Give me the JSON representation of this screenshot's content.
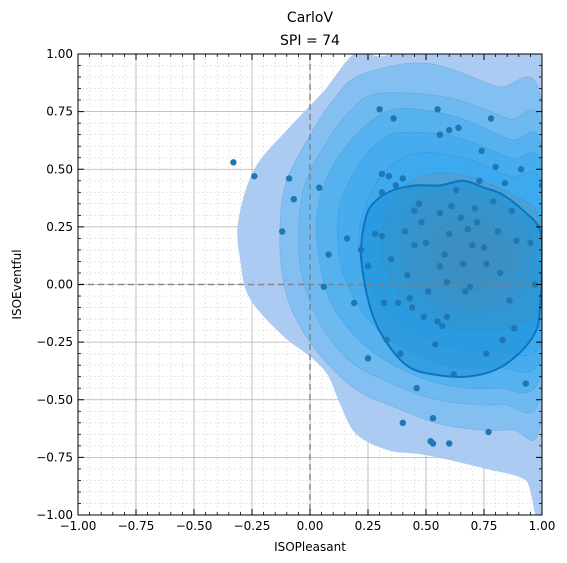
{
  "chart_data": {
    "type": "scatter",
    "title": "CarloV",
    "subtitle": "SPI = 74",
    "xlabel": "ISOPleasant",
    "ylabel": "ISOEventful",
    "xlim": [
      -1,
      1
    ],
    "ylim": [
      -1,
      1
    ],
    "grid": true,
    "minor_grid": true,
    "xticks": [
      "−1.00",
      "−0.75",
      "−0.50",
      "−0.25",
      "0.00",
      "0.25",
      "0.50",
      "0.75",
      "1.00"
    ],
    "yticks": [
      "−1.00",
      "−0.75",
      "−0.50",
      "−0.25",
      "0.00",
      "0.25",
      "0.50",
      "0.75",
      "1.00"
    ],
    "reference_lines": {
      "x": 0,
      "y": 0
    },
    "colors": {
      "points": "#1f77b4",
      "density_outer": "#a7c8f2",
      "density_mid": "#55b1f0",
      "density_inner": "#2aa4ee",
      "density_core": "#6f8797",
      "hdr_fill": "#1b8fd6",
      "hdr_edge": "#0d74c2",
      "reference": "#808080"
    },
    "density_levels": [
      {
        "points": [
          [
            0.19,
            1.0
          ],
          [
            0.3,
            0.99
          ],
          [
            0.42,
            1.0
          ],
          [
            1.0,
            1.0
          ],
          [
            1.0,
            -0.97
          ],
          [
            0.93,
            -0.85
          ],
          [
            0.76,
            -0.8
          ],
          [
            0.5,
            -0.74
          ],
          [
            0.34,
            -0.72
          ],
          [
            0.2,
            -0.65
          ],
          [
            0.13,
            -0.52
          ],
          [
            0.08,
            -0.4
          ],
          [
            0.01,
            -0.32
          ],
          [
            -0.12,
            -0.22
          ],
          [
            -0.26,
            -0.06
          ],
          [
            -0.3,
            0.1
          ],
          [
            -0.31,
            0.27
          ],
          [
            -0.24,
            0.5
          ],
          [
            -0.09,
            0.68
          ],
          [
            0.06,
            0.84
          ]
        ]
      },
      {
        "points": [
          [
            0.22,
            0.91
          ],
          [
            0.5,
            0.96
          ],
          [
            0.8,
            0.86
          ],
          [
            1.0,
            0.78
          ],
          [
            1.0,
            -0.55
          ],
          [
            0.86,
            -0.63
          ],
          [
            0.58,
            -0.61
          ],
          [
            0.36,
            -0.53
          ],
          [
            0.22,
            -0.47
          ],
          [
            0.1,
            -0.37
          ],
          [
            -0.02,
            -0.22
          ],
          [
            -0.1,
            -0.05
          ],
          [
            -0.13,
            0.17
          ],
          [
            -0.11,
            0.42
          ],
          [
            -0.01,
            0.63
          ],
          [
            0.1,
            0.8
          ]
        ]
      },
      {
        "points": [
          [
            0.3,
            0.83
          ],
          [
            0.6,
            0.81
          ],
          [
            0.85,
            0.72
          ],
          [
            1.0,
            0.66
          ],
          [
            1.0,
            -0.45
          ],
          [
            0.82,
            -0.52
          ],
          [
            0.55,
            -0.5
          ],
          [
            0.33,
            -0.42
          ],
          [
            0.17,
            -0.33
          ],
          [
            0.05,
            -0.18
          ],
          [
            -0.03,
            0.02
          ],
          [
            -0.05,
            0.22
          ],
          [
            -0.02,
            0.44
          ],
          [
            0.08,
            0.63
          ],
          [
            0.18,
            0.76
          ]
        ]
      },
      {
        "points": [
          [
            0.36,
            0.76
          ],
          [
            0.62,
            0.73
          ],
          [
            0.86,
            0.63
          ],
          [
            1.0,
            0.58
          ],
          [
            1.0,
            -0.37
          ],
          [
            0.8,
            -0.45
          ],
          [
            0.56,
            -0.43
          ],
          [
            0.36,
            -0.35
          ],
          [
            0.2,
            -0.23
          ],
          [
            0.09,
            -0.08
          ],
          [
            0.04,
            0.1
          ],
          [
            0.03,
            0.31
          ],
          [
            0.09,
            0.5
          ],
          [
            0.2,
            0.65
          ]
        ]
      },
      {
        "points": [
          [
            0.4,
            0.66
          ],
          [
            0.63,
            0.64
          ],
          [
            0.86,
            0.55
          ],
          [
            1.0,
            0.5
          ],
          [
            1.0,
            -0.3
          ],
          [
            0.8,
            -0.36
          ],
          [
            0.58,
            -0.35
          ],
          [
            0.39,
            -0.27
          ],
          [
            0.25,
            -0.15
          ],
          [
            0.16,
            0.0
          ],
          [
            0.12,
            0.17
          ],
          [
            0.13,
            0.35
          ],
          [
            0.21,
            0.52
          ],
          [
            0.3,
            0.62
          ]
        ]
      },
      {
        "points": [
          [
            0.46,
            0.57
          ],
          [
            0.66,
            0.55
          ],
          [
            0.86,
            0.47
          ],
          [
            1.0,
            0.43
          ],
          [
            1.0,
            -0.24
          ],
          [
            0.8,
            -0.29
          ],
          [
            0.6,
            -0.27
          ],
          [
            0.43,
            -0.2
          ],
          [
            0.3,
            -0.08
          ],
          [
            0.23,
            0.06
          ],
          [
            0.21,
            0.21
          ],
          [
            0.25,
            0.37
          ],
          [
            0.33,
            0.5
          ]
        ]
      },
      {
        "points": [
          [
            0.52,
            0.48
          ],
          [
            0.68,
            0.47
          ],
          [
            0.85,
            0.4
          ],
          [
            0.98,
            0.31
          ],
          [
            1.0,
            0.1
          ],
          [
            0.98,
            -0.12
          ],
          [
            0.8,
            -0.2
          ],
          [
            0.62,
            -0.19
          ],
          [
            0.47,
            -0.12
          ],
          [
            0.36,
            -0.01
          ],
          [
            0.31,
            0.13
          ],
          [
            0.32,
            0.28
          ],
          [
            0.4,
            0.42
          ]
        ]
      },
      {
        "points": [
          [
            0.56,
            0.41
          ],
          [
            0.7,
            0.4
          ],
          [
            0.84,
            0.34
          ],
          [
            0.94,
            0.24
          ],
          [
            0.95,
            0.08
          ],
          [
            0.9,
            -0.06
          ],
          [
            0.77,
            -0.12
          ],
          [
            0.62,
            -0.12
          ],
          [
            0.5,
            -0.06
          ],
          [
            0.42,
            0.04
          ],
          [
            0.39,
            0.16
          ],
          [
            0.41,
            0.28
          ],
          [
            0.47,
            0.37
          ]
        ]
      },
      {
        "points": [
          [
            0.6,
            0.35
          ],
          [
            0.72,
            0.34
          ],
          [
            0.83,
            0.29
          ],
          [
            0.9,
            0.2
          ],
          [
            0.9,
            0.08
          ],
          [
            0.85,
            -0.02
          ],
          [
            0.75,
            -0.07
          ],
          [
            0.63,
            -0.06
          ],
          [
            0.53,
            -0.01
          ],
          [
            0.47,
            0.08
          ],
          [
            0.46,
            0.18
          ],
          [
            0.49,
            0.28
          ],
          [
            0.54,
            0.33
          ]
        ]
      },
      {
        "points": [
          [
            0.63,
            0.28
          ],
          [
            0.73,
            0.28
          ],
          [
            0.81,
            0.24
          ],
          [
            0.85,
            0.16
          ],
          [
            0.84,
            0.07
          ],
          [
            0.79,
            0.01
          ],
          [
            0.71,
            -0.02
          ],
          [
            0.63,
            0.0
          ],
          [
            0.56,
            0.05
          ],
          [
            0.53,
            0.13
          ],
          [
            0.54,
            0.21
          ],
          [
            0.58,
            0.26
          ]
        ]
      },
      {
        "points": [
          [
            0.66,
            0.21
          ],
          [
            0.74,
            0.21
          ],
          [
            0.79,
            0.16
          ],
          [
            0.79,
            0.09
          ],
          [
            0.75,
            0.05
          ],
          [
            0.68,
            0.04
          ],
          [
            0.62,
            0.07
          ],
          [
            0.6,
            0.13
          ],
          [
            0.62,
            0.19
          ]
        ]
      }
    ],
    "hdr_region": [
      [
        0.24,
        0.29
      ],
      [
        0.28,
        0.36
      ],
      [
        0.36,
        0.41
      ],
      [
        0.46,
        0.43
      ],
      [
        0.56,
        0.43
      ],
      [
        0.66,
        0.45
      ],
      [
        0.75,
        0.42
      ],
      [
        0.83,
        0.39
      ],
      [
        0.92,
        0.32
      ],
      [
        0.99,
        0.24
      ],
      [
        1.0,
        0.1
      ],
      [
        0.99,
        -0.12
      ],
      [
        0.97,
        -0.21
      ],
      [
        0.9,
        -0.3
      ],
      [
        0.8,
        -0.37
      ],
      [
        0.67,
        -0.4
      ],
      [
        0.53,
        -0.39
      ],
      [
        0.43,
        -0.36
      ],
      [
        0.35,
        -0.28
      ],
      [
        0.28,
        -0.16
      ],
      [
        0.24,
        -0.02
      ],
      [
        0.22,
        0.14
      ]
    ],
    "points": [
      [
        -0.33,
        0.53
      ],
      [
        -0.24,
        0.47
      ],
      [
        -0.12,
        0.23
      ],
      [
        -0.09,
        0.46
      ],
      [
        -0.07,
        0.37
      ],
      [
        0.04,
        0.42
      ],
      [
        0.06,
        -0.01
      ],
      [
        0.08,
        0.13
      ],
      [
        0.16,
        0.2
      ],
      [
        0.19,
        -0.08
      ],
      [
        0.22,
        0.15
      ],
      [
        0.25,
        0.08
      ],
      [
        0.25,
        -0.32
      ],
      [
        0.28,
        0.22
      ],
      [
        0.3,
        0.76
      ],
      [
        0.31,
        0.48
      ],
      [
        0.31,
        0.4
      ],
      [
        0.31,
        0.21
      ],
      [
        0.32,
        -0.08
      ],
      [
        0.33,
        -0.24
      ],
      [
        0.34,
        0.47
      ],
      [
        0.35,
        0.11
      ],
      [
        0.36,
        0.72
      ],
      [
        0.37,
        0.43
      ],
      [
        0.38,
        -0.08
      ],
      [
        0.39,
        -0.3
      ],
      [
        0.4,
        0.46
      ],
      [
        0.4,
        -0.6
      ],
      [
        0.41,
        0.23
      ],
      [
        0.42,
        0.04
      ],
      [
        0.43,
        -0.06
      ],
      [
        0.44,
        -0.1
      ],
      [
        0.45,
        0.32
      ],
      [
        0.45,
        0.17
      ],
      [
        0.46,
        -0.45
      ],
      [
        0.47,
        0.35
      ],
      [
        0.48,
        0.27
      ],
      [
        0.49,
        -0.14
      ],
      [
        0.5,
        0.18
      ],
      [
        0.51,
        -0.03
      ],
      [
        0.52,
        -0.68
      ],
      [
        0.53,
        -0.58
      ],
      [
        0.53,
        -0.69
      ],
      [
        0.54,
        -0.26
      ],
      [
        0.55,
        0.76
      ],
      [
        0.55,
        -0.16
      ],
      [
        0.56,
        0.65
      ],
      [
        0.56,
        0.31
      ],
      [
        0.56,
        0.08
      ],
      [
        0.57,
        -0.18
      ],
      [
        0.58,
        0.13
      ],
      [
        0.59,
        0.01
      ],
      [
        0.59,
        -0.14
      ],
      [
        0.6,
        0.67
      ],
      [
        0.6,
        0.22
      ],
      [
        0.6,
        -0.69
      ],
      [
        0.61,
        0.34
      ],
      [
        0.62,
        -0.39
      ],
      [
        0.63,
        0.41
      ],
      [
        0.64,
        0.68
      ],
      [
        0.65,
        0.29
      ],
      [
        0.66,
        0.09
      ],
      [
        0.67,
        -0.03
      ],
      [
        0.68,
        0.24
      ],
      [
        0.69,
        -0.01
      ],
      [
        0.7,
        0.17
      ],
      [
        0.71,
        0.33
      ],
      [
        0.72,
        0.27
      ],
      [
        0.73,
        0.45
      ],
      [
        0.74,
        0.58
      ],
      [
        0.75,
        0.16
      ],
      [
        0.76,
        0.09
      ],
      [
        0.76,
        -0.3
      ],
      [
        0.77,
        -0.64
      ],
      [
        0.78,
        0.72
      ],
      [
        0.79,
        0.36
      ],
      [
        0.8,
        0.51
      ],
      [
        0.81,
        0.23
      ],
      [
        0.82,
        0.05
      ],
      [
        0.83,
        -0.24
      ],
      [
        0.84,
        0.44
      ],
      [
        0.86,
        -0.07
      ],
      [
        0.87,
        0.32
      ],
      [
        0.88,
        -0.19
      ],
      [
        0.89,
        0.19
      ],
      [
        0.91,
        0.5
      ],
      [
        0.93,
        -0.43
      ],
      [
        0.95,
        0.18
      ],
      [
        0.97,
        0.0
      ],
      [
        1.0,
        0.43
      ]
    ]
  }
}
